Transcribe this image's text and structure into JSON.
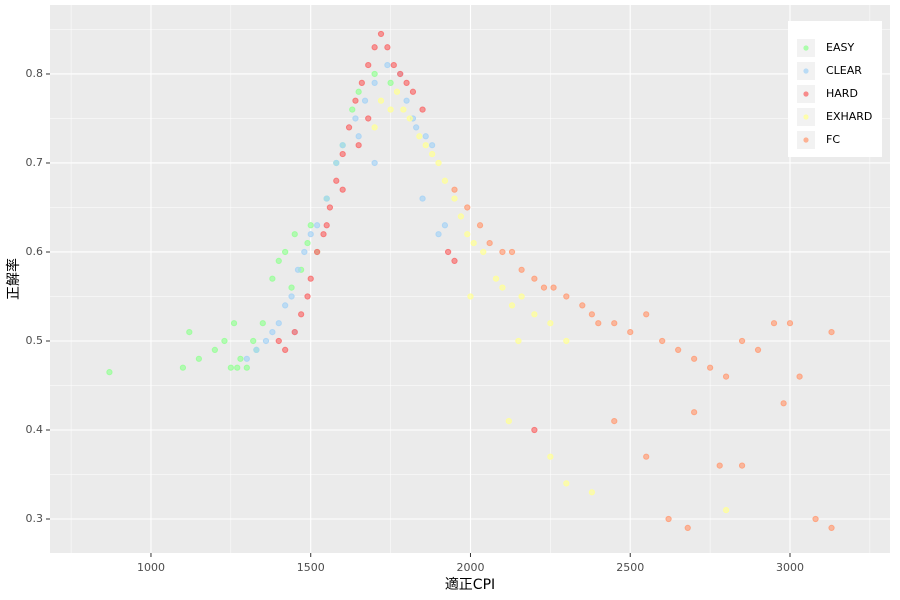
{
  "chart_data": {
    "type": "scatter",
    "xlabel": "適正CPI",
    "ylabel": "正解率",
    "xlim": [
      684,
      3313
    ],
    "ylim": [
      0.2618,
      0.8775
    ],
    "xticks": [
      1000,
      1500,
      2000,
      2500,
      3000
    ],
    "yticks": [
      0.3,
      0.4,
      0.5,
      0.6,
      0.7,
      0.8
    ],
    "x_minor_ticks": [
      750,
      1250,
      1750,
      2250,
      2750,
      3250
    ],
    "y_minor_ticks": [
      0.35,
      0.45,
      0.55,
      0.65,
      0.75,
      0.85
    ],
    "grid": true,
    "legend": "top-right",
    "series": [
      {
        "name": "EASY",
        "color": "#99ff99",
        "x": [
          870,
          1100,
          1120,
          1150,
          1200,
          1230,
          1250,
          1260,
          1280,
          1300,
          1320,
          1350,
          1380,
          1400,
          1420,
          1440,
          1450,
          1470,
          1490,
          1500,
          1520,
          1550,
          1580,
          1600,
          1630,
          1650,
          1700,
          1750,
          1270,
          1330
        ],
        "values": [
          0.465,
          0.47,
          0.51,
          0.48,
          0.49,
          0.5,
          0.47,
          0.52,
          0.48,
          0.47,
          0.5,
          0.52,
          0.57,
          0.59,
          0.6,
          0.56,
          0.62,
          0.58,
          0.61,
          0.63,
          0.6,
          0.66,
          0.7,
          0.72,
          0.76,
          0.78,
          0.8,
          0.79,
          0.47,
          0.49
        ]
      },
      {
        "name": "CLEAR",
        "color": "#aad4f5",
        "x": [
          1300,
          1330,
          1360,
          1380,
          1400,
          1420,
          1440,
          1460,
          1480,
          1500,
          1520,
          1550,
          1580,
          1600,
          1640,
          1670,
          1700,
          1740,
          1780,
          1800,
          1830,
          1860,
          1880,
          1850,
          1900,
          1920,
          1650,
          1700,
          1820,
          1450
        ],
        "values": [
          0.48,
          0.49,
          0.5,
          0.51,
          0.52,
          0.54,
          0.55,
          0.58,
          0.6,
          0.62,
          0.63,
          0.66,
          0.7,
          0.72,
          0.75,
          0.77,
          0.79,
          0.81,
          0.8,
          0.77,
          0.74,
          0.73,
          0.72,
          0.66,
          0.62,
          0.63,
          0.73,
          0.7,
          0.75,
          0.51
        ]
      },
      {
        "name": "HARD",
        "color": "#f87171",
        "x": [
          1400,
          1420,
          1450,
          1470,
          1490,
          1500,
          1520,
          1540,
          1560,
          1580,
          1600,
          1620,
          1640,
          1660,
          1680,
          1700,
          1720,
          1740,
          1760,
          1780,
          1800,
          1820,
          1850,
          1650,
          1680,
          1600,
          1550,
          1930,
          1950,
          2200
        ],
        "values": [
          0.5,
          0.49,
          0.51,
          0.53,
          0.55,
          0.57,
          0.6,
          0.62,
          0.65,
          0.68,
          0.71,
          0.74,
          0.77,
          0.79,
          0.81,
          0.83,
          0.845,
          0.83,
          0.81,
          0.8,
          0.79,
          0.78,
          0.76,
          0.72,
          0.75,
          0.67,
          0.63,
          0.6,
          0.59,
          0.4
        ]
      },
      {
        "name": "EXHARD",
        "color": "#ffff99",
        "x": [
          1720,
          1750,
          1770,
          1790,
          1810,
          1840,
          1860,
          1880,
          1900,
          1920,
          1950,
          1970,
          1990,
          2010,
          2040,
          2080,
          2100,
          2130,
          2160,
          2200,
          2250,
          2300,
          2000,
          2150,
          2120,
          2250,
          2300,
          2380,
          1700,
          2800
        ],
        "values": [
          0.77,
          0.76,
          0.78,
          0.76,
          0.75,
          0.73,
          0.72,
          0.71,
          0.7,
          0.68,
          0.66,
          0.64,
          0.62,
          0.61,
          0.6,
          0.57,
          0.56,
          0.54,
          0.55,
          0.53,
          0.52,
          0.5,
          0.55,
          0.5,
          0.41,
          0.37,
          0.34,
          0.33,
          0.74,
          0.31
        ]
      },
      {
        "name": "FC",
        "color": "#ffa07a",
        "x": [
          1950,
          1990,
          2030,
          2060,
          2100,
          2130,
          2160,
          2200,
          2230,
          2260,
          2300,
          2350,
          2380,
          2400,
          2450,
          2500,
          2550,
          2600,
          2650,
          2700,
          2750,
          2800,
          2850,
          2900,
          2950,
          3000,
          3030,
          3130,
          2620,
          2680,
          2780,
          3080,
          3130,
          2550,
          2450,
          2850,
          2700,
          2980
        ],
        "values": [
          0.67,
          0.65,
          0.63,
          0.61,
          0.6,
          0.6,
          0.58,
          0.57,
          0.56,
          0.56,
          0.55,
          0.54,
          0.53,
          0.52,
          0.52,
          0.51,
          0.53,
          0.5,
          0.49,
          0.48,
          0.47,
          0.46,
          0.5,
          0.49,
          0.52,
          0.52,
          0.46,
          0.51,
          0.3,
          0.29,
          0.36,
          0.3,
          0.29,
          0.37,
          0.41,
          0.36,
          0.42,
          0.43
        ]
      }
    ]
  }
}
